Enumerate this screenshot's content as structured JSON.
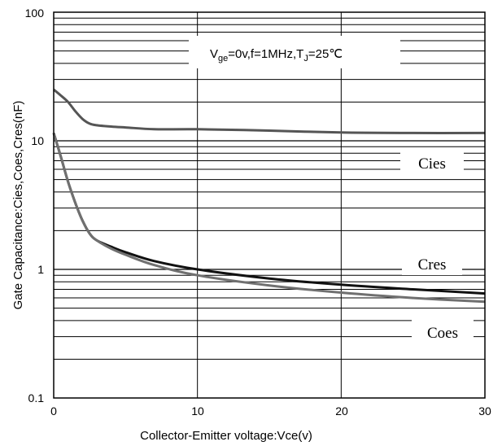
{
  "chart_data": {
    "type": "line",
    "title": "",
    "xlabel": "Collector-Emitter voltage:Vce(v)",
    "ylabel": "Gate Capacitance:Cies,Coes,Cres(nF)",
    "xlim": [
      0,
      30
    ],
    "ylim": [
      0.1,
      100
    ],
    "yscale": "log",
    "grid": true,
    "x_ticks": [
      "0",
      "10",
      "20",
      "30"
    ],
    "y_ticks": [
      "0.1",
      "1",
      "10",
      "100"
    ],
    "annotation": {
      "base": "V",
      "sub1": "ge",
      "mid": "=0v,f=1MHz,T",
      "sub2": "J",
      "tail": "=25℃"
    },
    "series": [
      {
        "name": "Cies",
        "color": "#555555",
        "x": [
          0,
          0.5,
          1,
          1.5,
          2,
          2.5,
          3,
          4,
          5,
          7,
          10,
          15,
          20,
          25,
          30
        ],
        "y": [
          25,
          22.5,
          20,
          17,
          14.8,
          13.6,
          13.2,
          12.9,
          12.7,
          12.3,
          12.3,
          12.0,
          11.6,
          11.5,
          11.5
        ]
      },
      {
        "name": "Cres",
        "color": "#111111",
        "x": [
          0,
          0.5,
          1,
          1.5,
          2,
          2.5,
          3,
          4,
          5,
          7,
          10,
          15,
          20,
          25,
          30
        ],
        "y": [
          11.5,
          7.5,
          4.8,
          3.3,
          2.4,
          1.9,
          1.68,
          1.5,
          1.36,
          1.16,
          1.0,
          0.85,
          0.76,
          0.7,
          0.65
        ]
      },
      {
        "name": "Coes",
        "color": "#707070",
        "x": [
          0,
          0.5,
          1,
          1.5,
          2,
          2.5,
          3,
          4,
          5,
          7,
          10,
          15,
          20,
          25,
          30
        ],
        "y": [
          11.5,
          7.5,
          4.8,
          3.3,
          2.4,
          1.9,
          1.68,
          1.45,
          1.3,
          1.08,
          0.9,
          0.75,
          0.66,
          0.6,
          0.56
        ]
      }
    ]
  }
}
